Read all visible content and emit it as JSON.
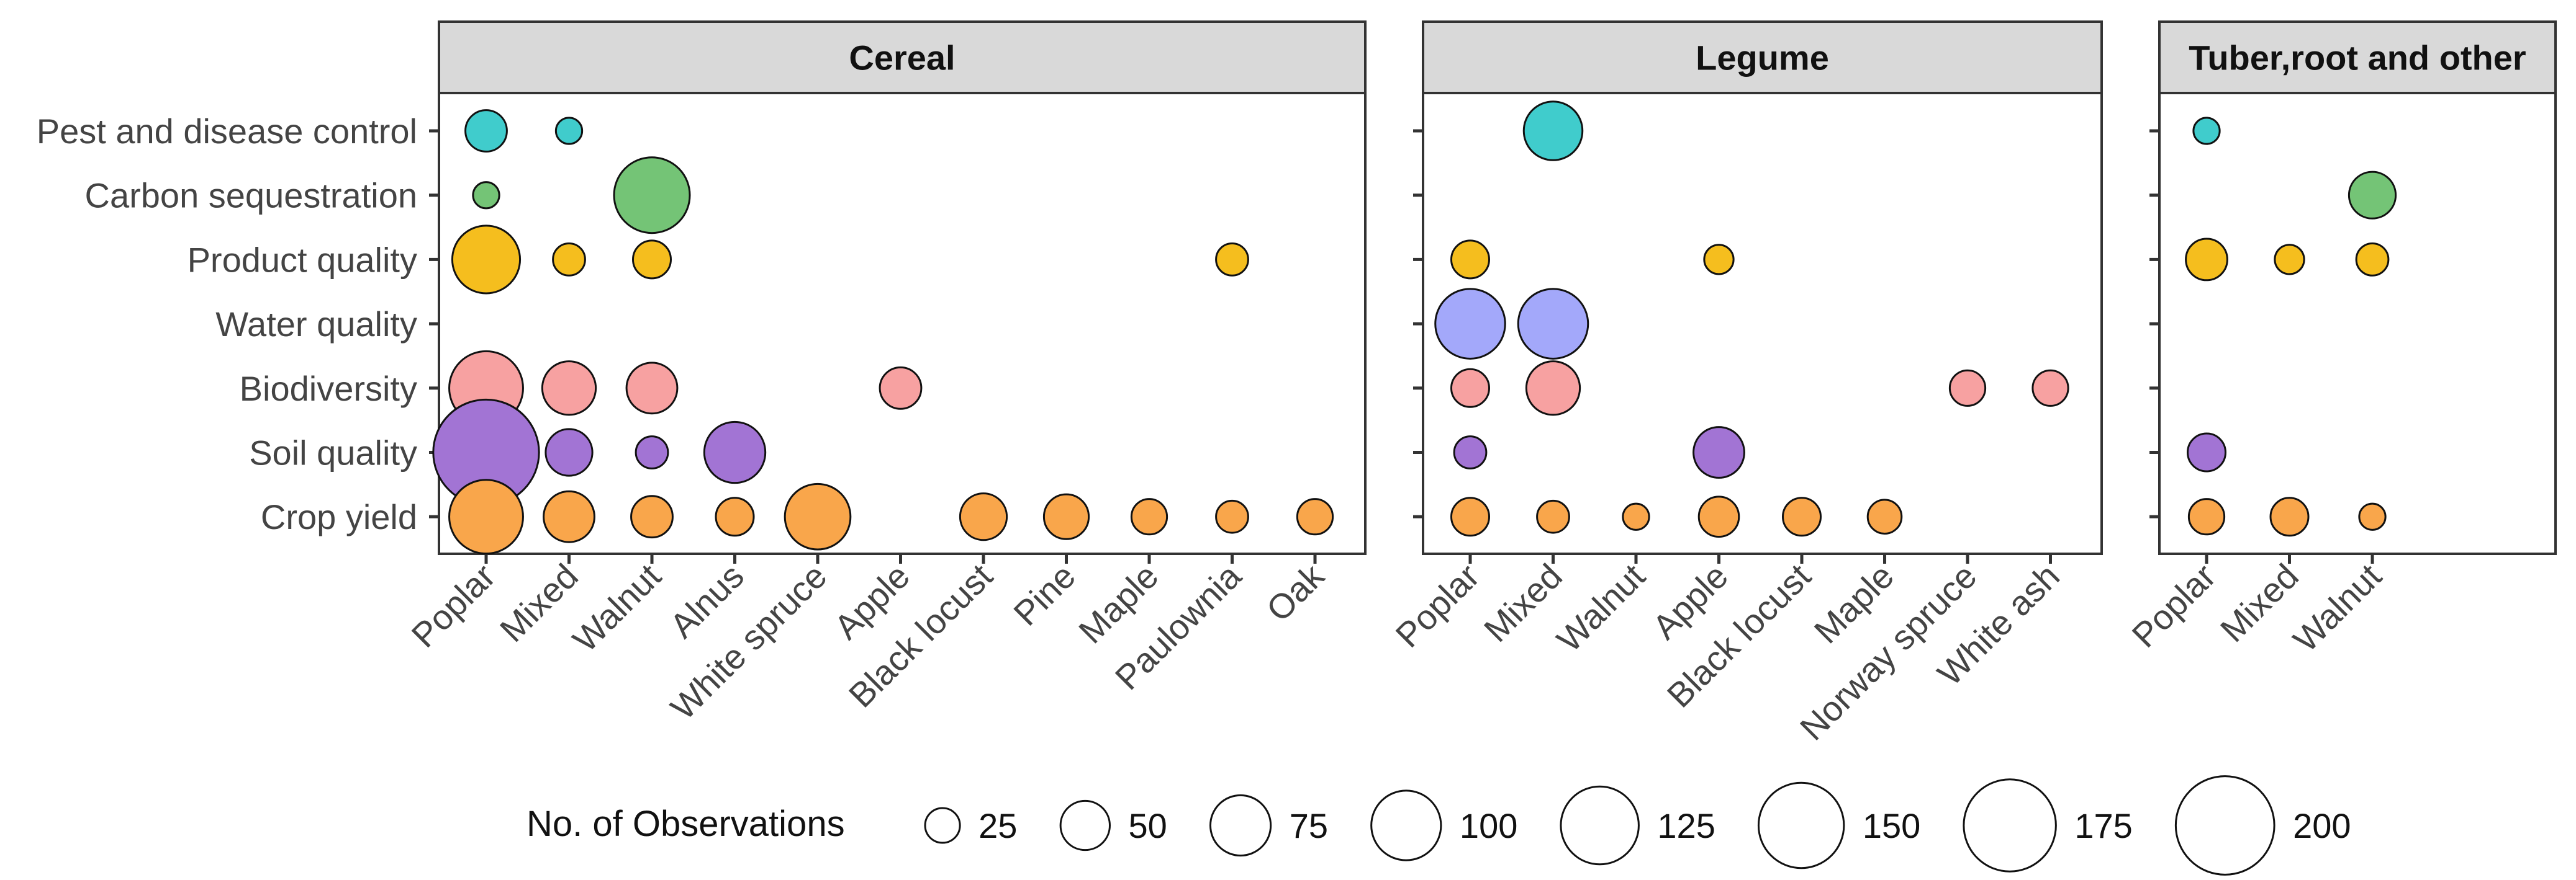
{
  "chart_data": {
    "type": "scatter",
    "size_legend_title": "No. of Observations",
    "size_legend_values": [
      25,
      50,
      75,
      100,
      125,
      150,
      175,
      200
    ],
    "categories_y": [
      "Pest and disease control",
      "Carbon sequestration",
      "Product quality",
      "Water quality",
      "Biodiversity",
      "Soil quality",
      "Crop yield"
    ],
    "colors": {
      "Pest and disease control": "#40CCCC",
      "Carbon sequestration": "#74C476",
      "Product quality": "#F5BE1E",
      "Water quality": "#A3A8FA",
      "Biodiversity": "#F7A1A1",
      "Soil quality": "#A274D4",
      "Crop yield": "#F9A64B"
    },
    "panels": [
      {
        "title": "Cereal",
        "x_categories": [
          "Poplar",
          "Mixed",
          "Walnut",
          "Alnus",
          "White spruce",
          "Apple",
          "Black locust",
          "Pine",
          "Maple",
          "Paulownia",
          "Oak"
        ],
        "points": [
          {
            "x": "Poplar",
            "y": "Pest and disease control",
            "n": 30
          },
          {
            "x": "Mixed",
            "y": "Pest and disease control",
            "n": 12
          },
          {
            "x": "Poplar",
            "y": "Carbon sequestration",
            "n": 12
          },
          {
            "x": "Walnut",
            "y": "Carbon sequestration",
            "n": 100
          },
          {
            "x": "Poplar",
            "y": "Product quality",
            "n": 80
          },
          {
            "x": "Mixed",
            "y": "Product quality",
            "n": 18
          },
          {
            "x": "Walnut",
            "y": "Product quality",
            "n": 25
          },
          {
            "x": "Paulownia",
            "y": "Product quality",
            "n": 18
          },
          {
            "x": "Poplar",
            "y": "Biodiversity",
            "n": 95
          },
          {
            "x": "Mixed",
            "y": "Biodiversity",
            "n": 50
          },
          {
            "x": "Walnut",
            "y": "Biodiversity",
            "n": 45
          },
          {
            "x": "Apple",
            "y": "Biodiversity",
            "n": 30
          },
          {
            "x": "Poplar",
            "y": "Soil quality",
            "n": 195
          },
          {
            "x": "Mixed",
            "y": "Soil quality",
            "n": 38
          },
          {
            "x": "Walnut",
            "y": "Soil quality",
            "n": 18
          },
          {
            "x": "Alnus",
            "y": "Soil quality",
            "n": 65
          },
          {
            "x": "Poplar",
            "y": "Crop yield",
            "n": 95
          },
          {
            "x": "Mixed",
            "y": "Crop yield",
            "n": 45
          },
          {
            "x": "Walnut",
            "y": "Crop yield",
            "n": 30
          },
          {
            "x": "Alnus",
            "y": "Crop yield",
            "n": 25
          },
          {
            "x": "White spruce",
            "y": "Crop yield",
            "n": 75
          },
          {
            "x": "Black locust",
            "y": "Crop yield",
            "n": 38
          },
          {
            "x": "Pine",
            "y": "Crop yield",
            "n": 35
          },
          {
            "x": "Maple",
            "y": "Crop yield",
            "n": 22
          },
          {
            "x": "Paulownia",
            "y": "Crop yield",
            "n": 18
          },
          {
            "x": "Oak",
            "y": "Crop yield",
            "n": 22
          }
        ]
      },
      {
        "title": "Legume",
        "x_categories": [
          "Poplar",
          "Mixed",
          "Walnut",
          "Apple",
          "Black locust",
          "Maple",
          "Norway spruce",
          "White ash"
        ],
        "points": [
          {
            "x": "Mixed",
            "y": "Pest and disease control",
            "n": 60
          },
          {
            "x": "Poplar",
            "y": "Product quality",
            "n": 25
          },
          {
            "x": "Apple",
            "y": "Product quality",
            "n": 15
          },
          {
            "x": "Poplar",
            "y": "Water quality",
            "n": 85
          },
          {
            "x": "Mixed",
            "y": "Water quality",
            "n": 85
          },
          {
            "x": "Poplar",
            "y": "Biodiversity",
            "n": 25
          },
          {
            "x": "Mixed",
            "y": "Biodiversity",
            "n": 50
          },
          {
            "x": "Norway spruce",
            "y": "Biodiversity",
            "n": 22
          },
          {
            "x": "White ash",
            "y": "Biodiversity",
            "n": 22
          },
          {
            "x": "Poplar",
            "y": "Soil quality",
            "n": 18
          },
          {
            "x": "Apple",
            "y": "Soil quality",
            "n": 45
          },
          {
            "x": "Poplar",
            "y": "Crop yield",
            "n": 25
          },
          {
            "x": "Mixed",
            "y": "Crop yield",
            "n": 18
          },
          {
            "x": "Walnut",
            "y": "Crop yield",
            "n": 12
          },
          {
            "x": "Apple",
            "y": "Crop yield",
            "n": 28
          },
          {
            "x": "Black locust",
            "y": "Crop yield",
            "n": 25
          },
          {
            "x": "Maple",
            "y": "Crop yield",
            "n": 20
          }
        ]
      },
      {
        "title": "Tuber,root and other",
        "x_categories": [
          "Poplar",
          "Mixed",
          "Walnut"
        ],
        "points": [
          {
            "x": "Poplar",
            "y": "Pest and disease control",
            "n": 12
          },
          {
            "x": "Walnut",
            "y": "Carbon sequestration",
            "n": 38
          },
          {
            "x": "Poplar",
            "y": "Product quality",
            "n": 30
          },
          {
            "x": "Mixed",
            "y": "Product quality",
            "n": 15
          },
          {
            "x": "Walnut",
            "y": "Product quality",
            "n": 18
          },
          {
            "x": "Poplar",
            "y": "Soil quality",
            "n": 25
          },
          {
            "x": "Poplar",
            "y": "Crop yield",
            "n": 22
          },
          {
            "x": "Mixed",
            "y": "Crop yield",
            "n": 25
          },
          {
            "x": "Walnut",
            "y": "Crop yield",
            "n": 12
          }
        ]
      }
    ]
  }
}
